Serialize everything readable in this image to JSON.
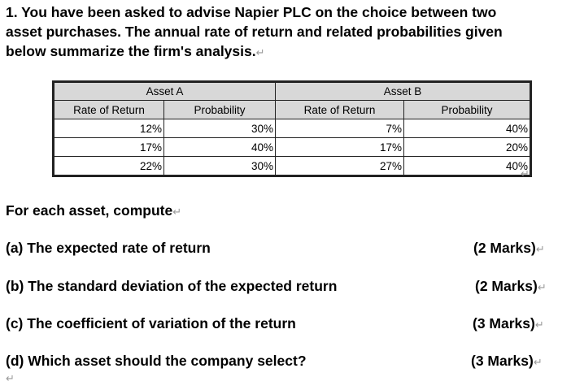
{
  "question": {
    "line1": "1. You have been asked to advise Napier PLC on the choice between two",
    "line2": "asset purchases. The annual rate of return and related probabilities given",
    "line3": "below summarize the firm's analysis."
  },
  "return_mark": "↵",
  "table": {
    "group_headers": [
      "Asset A",
      "Asset B"
    ],
    "column_headers": [
      "Rate of Return",
      "Probability",
      "Rate of Return",
      "Probability"
    ],
    "rows": [
      [
        "12%",
        "30%",
        "7%",
        "40%"
      ],
      [
        "17%",
        "40%",
        "17%",
        "20%"
      ],
      [
        "22%",
        "30%",
        "27%",
        "40%"
      ]
    ]
  },
  "instruction": "For each asset, compute",
  "parts": [
    {
      "text": "(a) The expected rate of return",
      "marks": "(2 Marks)"
    },
    {
      "text": "(b) The standard deviation of the expected return",
      "marks": "(2 Marks)"
    },
    {
      "text": "(c) The coefficient of variation of the return",
      "marks": "(3 Marks)"
    },
    {
      "text": "(d) Which asset should the company select?",
      "marks": "(3 Marks)"
    }
  ]
}
